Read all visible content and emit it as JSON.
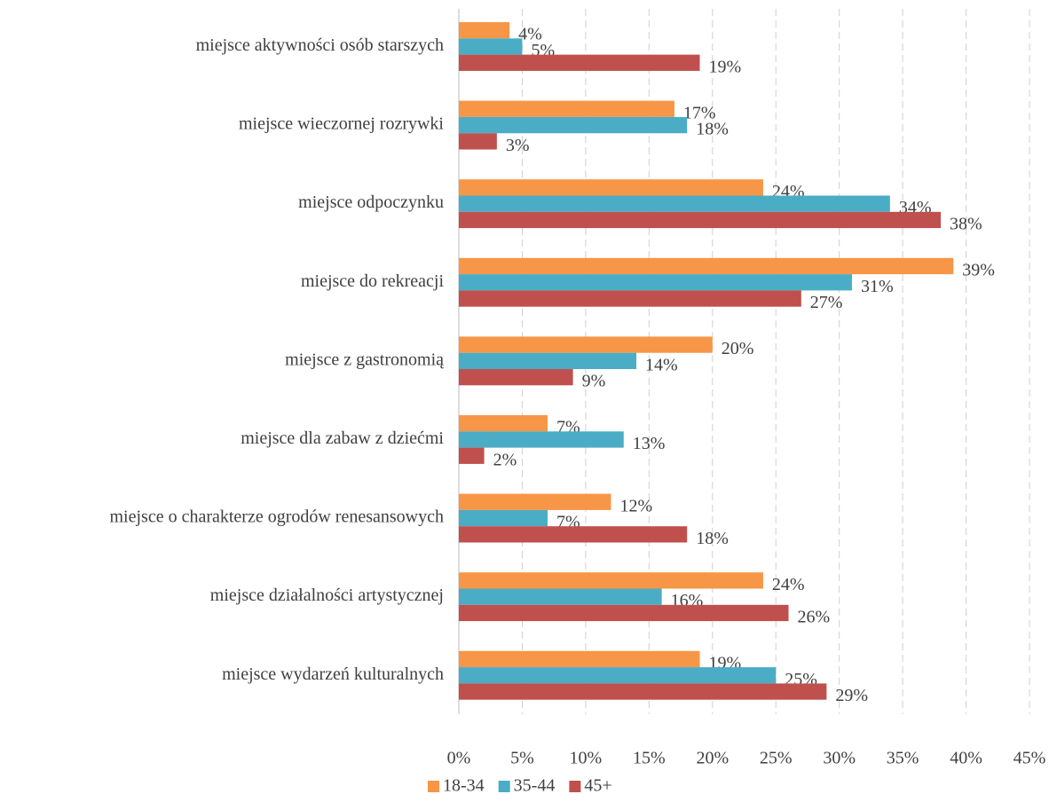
{
  "chart_data": {
    "type": "bar",
    "orientation": "horizontal",
    "categories": [
      "miejsce aktywności osób starszych",
      "miejsce wieczornej rozrywki",
      "miejsce odpoczynku",
      "miejsce do rekreacji",
      "miejsce z gastronomią",
      "miejsce dla zabaw z dziećmi",
      "miejsce o charakterze ogrodów renesansowych",
      "miejsce działalności artystycznej",
      "miejsce wydarzeń kulturalnych"
    ],
    "series": [
      {
        "name": "18-34",
        "color": "#f79646",
        "values": [
          4,
          17,
          24,
          39,
          20,
          7,
          12,
          24,
          19
        ],
        "value_labels": [
          "4%",
          "17%",
          "24%",
          "39%",
          "20%",
          "7%",
          "12%",
          "24%",
          "19%"
        ]
      },
      {
        "name": "35-44",
        "color": "#4bacc6",
        "values": [
          5,
          18,
          34,
          31,
          14,
          13,
          7,
          16,
          25
        ],
        "value_labels": [
          "5%",
          "18%",
          "34%",
          "31%",
          "14%",
          "13%",
          "7%",
          "16%",
          "25%"
        ]
      },
      {
        "name": "45+",
        "color": "#c0504d",
        "values": [
          19,
          3,
          38,
          27,
          9,
          2,
          18,
          26,
          29
        ],
        "value_labels": [
          "19%",
          "3%",
          "38%",
          "27%",
          "9%",
          "2%",
          "18%",
          "26%",
          "29%"
        ]
      }
    ],
    "xlim": [
      0,
      45
    ],
    "xticks": [
      {
        "value": 0,
        "label": "0%"
      },
      {
        "value": 5,
        "label": "5%"
      },
      {
        "value": 10,
        "label": "10%"
      },
      {
        "value": 15,
        "label": "15%"
      },
      {
        "value": 20,
        "label": "20%"
      },
      {
        "value": 25,
        "label": "25%"
      },
      {
        "value": 30,
        "label": "30%"
      },
      {
        "value": 35,
        "label": "35%"
      },
      {
        "value": 40,
        "label": "40%"
      },
      {
        "value": 45,
        "label": "45%"
      }
    ],
    "grid": true,
    "legend": "bottom"
  }
}
